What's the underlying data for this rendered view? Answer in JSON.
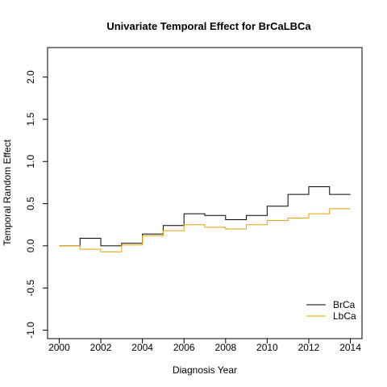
{
  "chart_data": {
    "type": "line",
    "step": true,
    "title": "Univariate Temporal Effect for  BrCaLBCa",
    "xlabel": "Diagnosis Year",
    "ylabel": "Temporal Random Effect",
    "xlim": [
      1999.44,
      2014.56
    ],
    "ylim": [
      -1.1,
      2.35
    ],
    "xticks": [
      "2000",
      "2002",
      "2004",
      "2006",
      "2008",
      "2010",
      "2012",
      "2014"
    ],
    "yticks": [
      "-1.0",
      "-0.5",
      "0.0",
      "0.5",
      "1.0",
      "1.5",
      "2.0"
    ],
    "x": [
      2000,
      2001,
      2002,
      2003,
      2004,
      2005,
      2006,
      2007,
      2008,
      2009,
      2010,
      2011,
      2012,
      2013,
      2014
    ],
    "series": [
      {
        "name": "BrCa",
        "color": "#000000",
        "values": [
          0.0,
          0.09,
          0.0,
          0.03,
          0.14,
          0.24,
          0.38,
          0.36,
          0.31,
          0.36,
          0.47,
          0.61,
          0.7,
          0.61,
          0.61
        ]
      },
      {
        "name": "LbCa",
        "color": "#E69F00",
        "values": [
          0.0,
          -0.04,
          -0.07,
          0.01,
          0.12,
          0.18,
          0.25,
          0.22,
          0.2,
          0.25,
          0.3,
          0.33,
          0.38,
          0.44,
          0.44
        ]
      }
    ],
    "legend_position": "bottom-right",
    "grid": false
  }
}
